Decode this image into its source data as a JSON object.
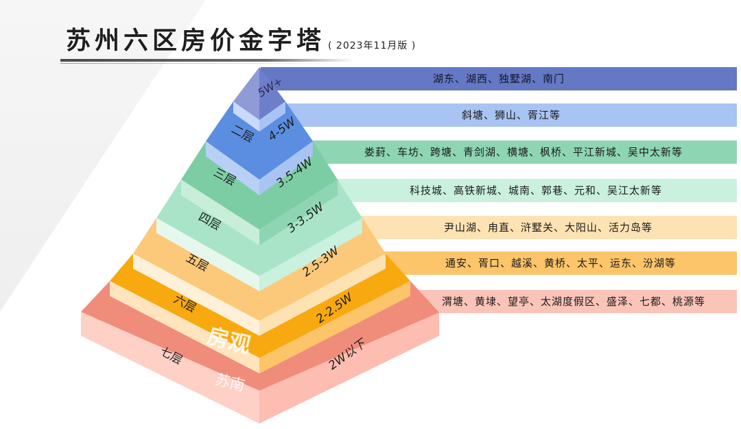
{
  "title": {
    "main": "苏州六区房价金字塔",
    "sub": "( 2023年11月版 )"
  },
  "tiers": [
    {
      "layer": "",
      "range": "5W+",
      "areas": "湖东、湖西、独墅湖、南门",
      "bar_color": "#6478c4",
      "face_color": "#9aa7da",
      "side_color": "#7384cc"
    },
    {
      "layer": "二层",
      "range": "4-5W",
      "areas": "斜塘、狮山、胥江等",
      "bar_color": "#a9c3f2",
      "face_color": "#c8dafa",
      "side_color": "#5b8ee0"
    },
    {
      "layer": "三层",
      "range": "3.5-4W",
      "areas": "娄葑、车坊、跨塘、青剑湖、横塘、枫桥、平江新城、吴中太新等",
      "bar_color": "#8ed6b3",
      "face_color": "#c4ecd8",
      "side_color": "#7dcda4"
    },
    {
      "layer": "四层",
      "range": "3-3.5W",
      "areas": "科技城、高铁新城、城南、郭巷、元和、吴江太新等",
      "bar_color": "#c9f1de",
      "face_color": "#e2f7ec",
      "side_color": "#a9e4c8"
    },
    {
      "layer": "五层",
      "range": "2.5-3W",
      "areas": "尹山湖、甪直、浒墅关、大阳山、活力岛等",
      "bar_color": "#fde2b4",
      "face_color": "#fff0d6",
      "side_color": "#fcc97a"
    },
    {
      "layer": "六层",
      "range": "2-2.5W",
      "areas": "通安、胥口、越溪、黄桥、太平、运东、汾湖等",
      "bar_color": "#fcc56a",
      "face_color": "#ffe8c0",
      "side_color": "#f7a90f"
    },
    {
      "layer": "七层",
      "range": "2W以下",
      "areas": "渭塘、黄埭、望亭、太湖度假区、盛泽、七都、桃源等",
      "bar_color": "#fbc4b8",
      "face_color": "#ffd6cc",
      "side_color": "#f08c7a"
    }
  ],
  "watermark": {
    "line1": "房观",
    "line2": "苏南"
  }
}
